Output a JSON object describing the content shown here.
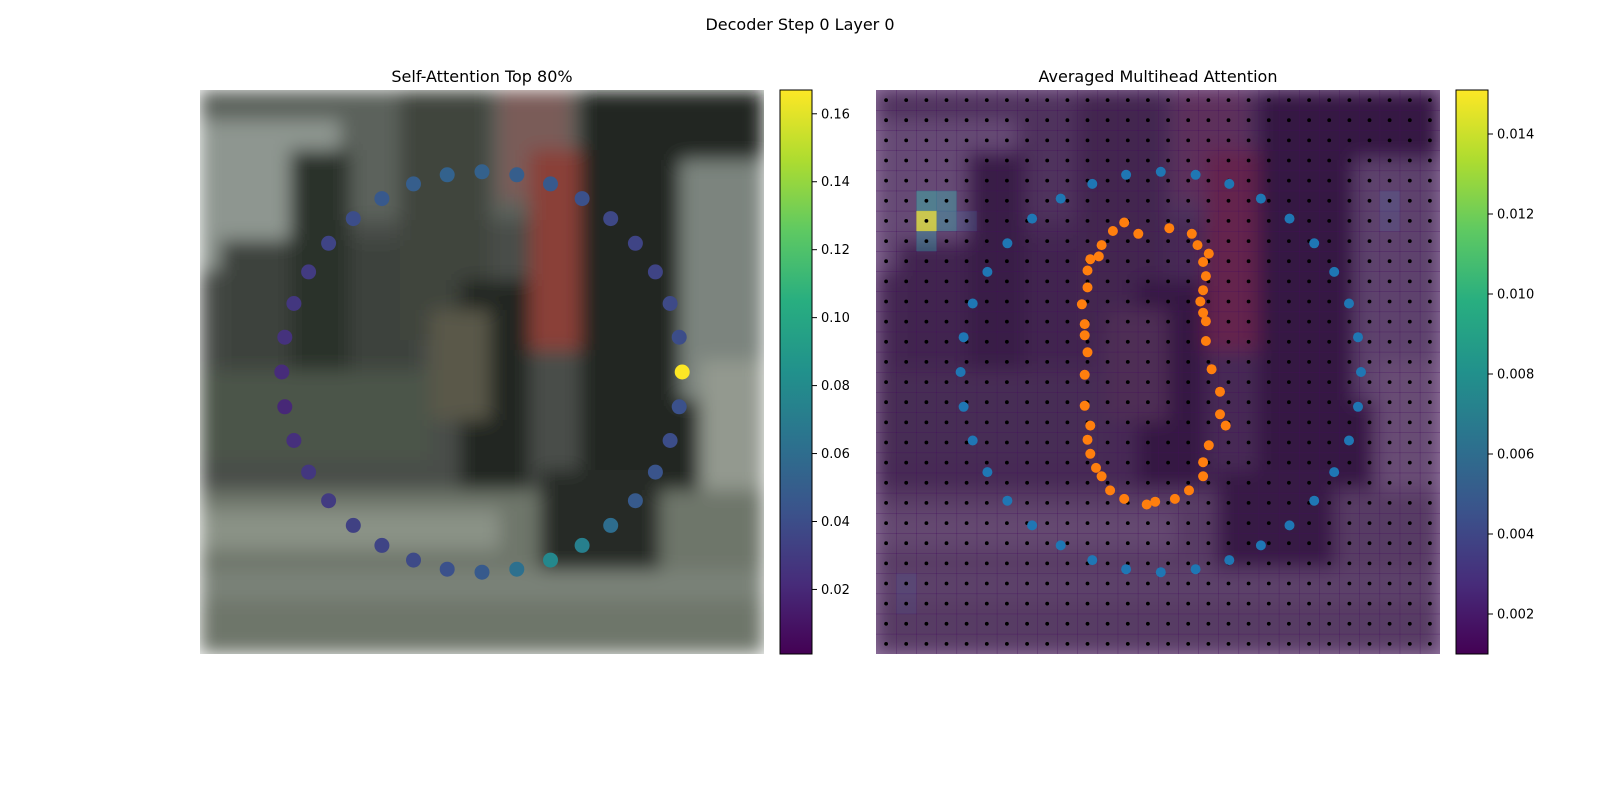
{
  "figure": {
    "title": "Decoder Step 0 Layer 0"
  },
  "chart_data": [
    {
      "type": "scatter",
      "title": "Self-Attention Top 80%",
      "background": "blurred street-scene photo (pedestrians and parked cars)",
      "xlim": [
        0,
        100
      ],
      "ylim": [
        0,
        100
      ],
      "axes_visible": false,
      "grid": false,
      "colormap": "viridis",
      "colorbar": {
        "range": [
          0.001,
          0.167
        ],
        "ticks": [
          0.02,
          0.04,
          0.06,
          0.08,
          0.1,
          0.12,
          0.14,
          0.16
        ],
        "tick_labels": [
          "0.02",
          "0.04",
          "0.06",
          "0.08",
          "0.10",
          "0.12",
          "0.14",
          "0.16"
        ]
      },
      "points": {
        "count": 36,
        "center": [
          50,
          50
        ],
        "radius_x": 35.5,
        "radius_y": 35.5,
        "start_angle_deg": 0,
        "attention": [
          0.167,
          0.04,
          0.038,
          0.035,
          0.035,
          0.037,
          0.042,
          0.047,
          0.05,
          0.052,
          0.053,
          0.05,
          0.047,
          0.04,
          0.035,
          0.03,
          0.028,
          0.025,
          0.022,
          0.02,
          0.024,
          0.028,
          0.03,
          0.033,
          0.035,
          0.038,
          0.042,
          0.048,
          0.062,
          0.078,
          0.072,
          0.06,
          0.048,
          0.044,
          0.04,
          0.042
        ]
      }
    },
    {
      "type": "heatmap",
      "title": "Averaged Multihead Attention",
      "background": "blurred street-scene photo overlaid with attention heatmap",
      "xlim": [
        0,
        100
      ],
      "ylim": [
        0,
        100
      ],
      "axes_visible": false,
      "grid": false,
      "colormap": "viridis",
      "colorbar": {
        "range": [
          0.001,
          0.0151
        ],
        "ticks": [
          0.002,
          0.004,
          0.006,
          0.008,
          0.01,
          0.012,
          0.014
        ],
        "tick_labels": [
          "0.002",
          "0.004",
          "0.006",
          "0.008",
          "0.010",
          "0.012",
          "0.014"
        ]
      },
      "heatmap_grid": {
        "rows": 28,
        "cols": 28,
        "base_value": 0.0015
      },
      "hot_cells": [
        {
          "row": 6,
          "col": 2,
          "value": 0.0148
        },
        {
          "row": 5,
          "col": 2,
          "value": 0.0062
        },
        {
          "row": 5,
          "col": 3,
          "value": 0.0055
        },
        {
          "row": 6,
          "col": 3,
          "value": 0.0052
        },
        {
          "row": 7,
          "col": 2,
          "value": 0.005
        },
        {
          "row": 6,
          "col": 4,
          "value": 0.003
        },
        {
          "row": 5,
          "col": 25,
          "value": 0.0028
        },
        {
          "row": 6,
          "col": 25,
          "value": 0.0026
        },
        {
          "row": 24,
          "col": 1,
          "value": 0.0024
        },
        {
          "row": 25,
          "col": 1,
          "value": 0.0023
        }
      ],
      "grid_points": {
        "rows": 28,
        "cols": 28,
        "color": "#000000"
      },
      "series": [
        {
          "name": "",
          "color": "#1f77b4",
          "shape": "circle",
          "count": 36,
          "center": [
            50.5,
            50
          ],
          "radius_x": 35.5,
          "radius_y": 35.5
        },
        {
          "name": "",
          "color": "#ff7f0e",
          "points": [
            [
              52,
              75.5
            ],
            [
              56,
              74.5
            ],
            [
              57,
              72.5
            ],
            [
              59,
              71
            ],
            [
              58,
              69.5
            ],
            [
              58.5,
              67
            ],
            [
              58,
              64.5
            ],
            [
              57.5,
              62.5
            ],
            [
              58,
              60.5
            ],
            [
              58.5,
              59
            ],
            [
              58.5,
              55.5
            ],
            [
              59.5,
              50.5
            ],
            [
              61,
              46.5
            ],
            [
              61,
              42.5
            ],
            [
              62,
              40.5
            ],
            [
              59,
              37
            ],
            [
              58,
              34
            ],
            [
              58,
              31.5
            ],
            [
              55.5,
              29
            ],
            [
              53,
              27.5
            ],
            [
              49.5,
              27
            ],
            [
              48,
              26.5
            ],
            [
              44,
              27.5
            ],
            [
              41.5,
              29
            ],
            [
              40,
              31.5
            ],
            [
              39,
              33
            ],
            [
              38,
              35.5
            ],
            [
              37.5,
              38
            ],
            [
              38,
              40.5
            ],
            [
              37,
              44
            ],
            [
              37,
              49.5
            ],
            [
              37.5,
              53.5
            ],
            [
              37,
              56.5
            ],
            [
              37,
              58.5
            ],
            [
              36.5,
              62
            ],
            [
              37.5,
              65
            ],
            [
              37.5,
              68
            ],
            [
              38,
              70
            ],
            [
              39.5,
              70.5
            ],
            [
              40,
              72.5
            ],
            [
              42,
              75
            ],
            [
              44,
              76.5
            ],
            [
              46.5,
              74.5
            ]
          ]
        }
      ]
    }
  ]
}
